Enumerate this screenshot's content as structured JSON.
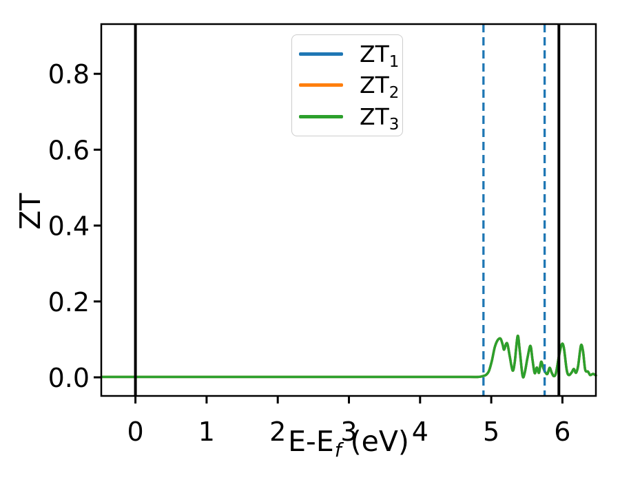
{
  "figure": {
    "background": "#ffffff"
  },
  "labels": {
    "ylabel": "ZT",
    "xlabel_pre": "E-E",
    "xlabel_sub": "f",
    "xlabel_post": " (eV)"
  },
  "chart_data": {
    "type": "line",
    "title": "",
    "xlabel": "E-E_f (eV)",
    "ylabel": "ZT",
    "xlim": [
      -0.48,
      6.47
    ],
    "ylim": [
      -0.049,
      0.931
    ],
    "xticks": [
      0,
      1,
      2,
      3,
      4,
      5,
      6
    ],
    "xtick_labels": [
      "0",
      "1",
      "2",
      "3",
      "4",
      "5",
      "6"
    ],
    "yticks": [
      0.0,
      0.2,
      0.4,
      0.6,
      0.8
    ],
    "ytick_labels": [
      "0.0",
      "0.2",
      "0.4",
      "0.6",
      "0.8"
    ],
    "grid": false,
    "legend": {
      "position": "upper center",
      "entries": [
        "ZT_1",
        "ZT_2",
        "ZT_3"
      ]
    },
    "x": [
      -0.48,
      0,
      0.5,
      1,
      1.5,
      2,
      2.5,
      3,
      3.5,
      4,
      4.4,
      4.7,
      4.82,
      4.88,
      4.93,
      4.97,
      5.01,
      5.05,
      5.09,
      5.13,
      5.16,
      5.18,
      5.21,
      5.23,
      5.26,
      5.3,
      5.33,
      5.37,
      5.4,
      5.44,
      5.47,
      5.51,
      5.55,
      5.58,
      5.61,
      5.64,
      5.67,
      5.7,
      5.73,
      5.76,
      5.79,
      5.82,
      5.85,
      5.88,
      5.91,
      5.95,
      5.99,
      6.02,
      6.06,
      6.09,
      6.13,
      6.16,
      6.19,
      6.22,
      6.26,
      6.29,
      6.32,
      6.36,
      6.39,
      6.43,
      6.47
    ],
    "shared_values": [
      0.001,
      0.001,
      0.001,
      0.001,
      0.001,
      0.001,
      0.001,
      0.001,
      0.001,
      0.001,
      0.001,
      0.001,
      0.001,
      0.003,
      0.007,
      0.018,
      0.045,
      0.08,
      0.098,
      0.102,
      0.086,
      0.073,
      0.089,
      0.086,
      0.055,
      0.018,
      0.04,
      0.109,
      0.07,
      0.004,
      0.012,
      0.052,
      0.083,
      0.045,
      0.011,
      0.026,
      0.012,
      0.041,
      0.025,
      0.013,
      0.009,
      0.025,
      0.012,
      0.003,
      0.012,
      0.055,
      0.087,
      0.078,
      0.02,
      0.006,
      0.013,
      0.022,
      0.012,
      0.03,
      0.084,
      0.068,
      0.02,
      0.015,
      0.006,
      0.009,
      0.005
    ],
    "series": [
      {
        "name": "ZT_1",
        "label_base": "ZT",
        "label_sub": "1",
        "color": "#1f77b4",
        "linestyle": "solid",
        "linewidth": 3.5,
        "note": "identical to shared_values; hidden beneath ZT_3"
      },
      {
        "name": "ZT_2",
        "label_base": "ZT",
        "label_sub": "2",
        "color": "#ff7f0e",
        "linestyle": "solid",
        "linewidth": 3.5,
        "note": "identical to shared_values; hidden beneath ZT_3"
      },
      {
        "name": "ZT_3",
        "label_base": "ZT",
        "label_sub": "3",
        "color": "#2ca02c",
        "linestyle": "solid",
        "linewidth": 3.5,
        "note": "uses shared_values; visible on top"
      }
    ],
    "vlines": [
      {
        "x": 0.0,
        "color": "#000000",
        "linestyle": "solid",
        "linewidth": 4
      },
      {
        "x": 5.95,
        "color": "#000000",
        "linestyle": "solid",
        "linewidth": 4
      },
      {
        "x": 4.89,
        "color": "#1f77b4",
        "linestyle": "dashed",
        "linewidth": 3.3
      },
      {
        "x": 5.75,
        "color": "#1f77b4",
        "linestyle": "dashed",
        "linewidth": 3.3
      }
    ]
  }
}
